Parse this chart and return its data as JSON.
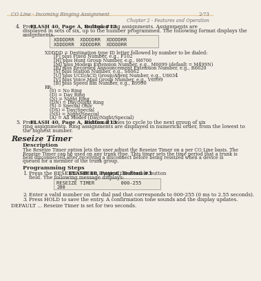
{
  "header_left": "CO Line - Incoming Ringing Assignment",
  "header_right": "2-73",
  "subheader": "Chapter 2 - Features and Operation",
  "header_line_color": "#e8c9a0",
  "bg_color": "#f4efe6",
  "step4_pre": "Press ",
  "step4_bold": "FLASH 40, Page A, Button #13",
  "step4_post": " to display ring assignments. Assignments are",
  "step4_line2": "displayed in sets of six, up to the number programmed. The following format displays the",
  "step4_line3": "assignments.",
  "box1_line1": "XDDDDRR  XDDDDRR  XDDDDRR",
  "box1_line2": "XDDDDRR  XDDDDRR  XDDDDRR",
  "xdddd_label": "XDDDD = Destination type ID letter followed by number to be dialed:",
  "xdddd_items": [
    "[F] plus Fixed Number, e.g., F102",
    "[H] plus Hunt Group Number, e.g., H6700",
    "[M] plus Modem Extension Number, e.g., M6099 (default = M499N)",
    "[R] plus Recorded Announcement Extension Number, e.g., R6620",
    "[S] plus Station Number, e.g., S6062",
    "[U] plus UCD/ACD Group/Agent Number, e.g., U6034",
    "[V] plus Voice Mail Group Number, e.g., V6999",
    "[B] plus Speed Bin Number, e.g., B9990"
  ],
  "rr_label": "RR:",
  "rr_items": [
    "(0) = No Ring",
    "(D) = Day Ring",
    "(N) = Night Ring",
    "(DN) = Day/Night Ring",
    "(S) = Special Only",
    "(DS) = Day/Special",
    "(NS) = Night/Special",
    "(A) = All Modes (Day/Night/Special)"
  ],
  "step5_pre": "Press ",
  "step5_bold": "FLASH 40, Page A, Button #13",
  "step5_post": " additional times to cycle to the next group of six",
  "step5_line2": "ring assignments. Ring assignments are displayed in numerical order, from the lowest to",
  "step5_line3": "the highest number.",
  "reseize_title": "Reseize Timer",
  "desc_title": "Description",
  "desc_lines": [
    "The Reseize Timer option lets the user adjust the Reseize Timer on a per CO Line basis. The",
    "Reseize Timer can be used on any trunk type. This timer sets the time period that a trunk is",
    "held disconnected after receiving a disconnect before being reseized when a device is",
    "queued for a member of the trunk group."
  ],
  "prog_title": "Programming Steps",
  "prog1_pre": "Press the RESEIZE TIMER Button (",
  "prog1_bold": "FLASH 40, Page C, Button #3",
  "prog1_post": ") in the flexible button",
  "prog1_line2": "field. The following message displays:",
  "box2_line1": "RESEIZE TIMER         000-255",
  "box2_line2": "200",
  "prog2": "Enter a valid number on the dial pad that corresponds to 000-255 (0 ms to 2.55 seconds).",
  "prog3": "Press HOLD to save the entry. A confirmation tone sounds and the display updates.",
  "default_text": "DEFAULT ... Reseize Timer is set for two seconds.",
  "text_color": "#2a2a2a",
  "gray_color": "#666666",
  "mono_bg": "#ede8dc",
  "box_edge": "#999999"
}
